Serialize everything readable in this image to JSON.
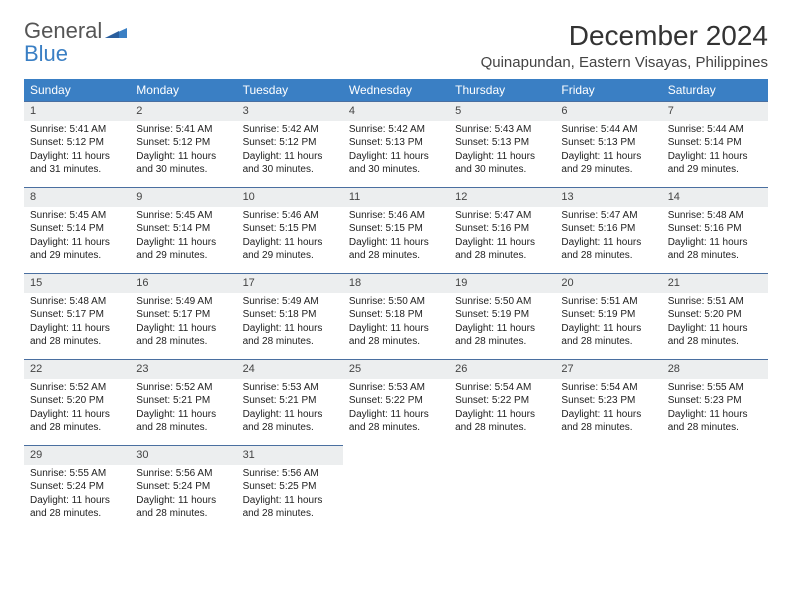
{
  "logo": {
    "general": "General",
    "blue": "Blue"
  },
  "title": "December 2024",
  "location": "Quinapundan, Eastern Visayas, Philippines",
  "colors": {
    "header_bg": "#3a7fc4",
    "header_text": "#ffffff",
    "daynum_bg": "#eceeef",
    "daynum_border": "#4a6fa0",
    "body_text": "#222222",
    "page_bg": "#ffffff"
  },
  "layout": {
    "columns": 7,
    "rows": 5,
    "start_day_index": 0
  },
  "weekdays": [
    "Sunday",
    "Monday",
    "Tuesday",
    "Wednesday",
    "Thursday",
    "Friday",
    "Saturday"
  ],
  "days": [
    {
      "n": "1",
      "sr": "5:41 AM",
      "ss": "5:12 PM",
      "dh": "11",
      "dm": "31"
    },
    {
      "n": "2",
      "sr": "5:41 AM",
      "ss": "5:12 PM",
      "dh": "11",
      "dm": "30"
    },
    {
      "n": "3",
      "sr": "5:42 AM",
      "ss": "5:12 PM",
      "dh": "11",
      "dm": "30"
    },
    {
      "n": "4",
      "sr": "5:42 AM",
      "ss": "5:13 PM",
      "dh": "11",
      "dm": "30"
    },
    {
      "n": "5",
      "sr": "5:43 AM",
      "ss": "5:13 PM",
      "dh": "11",
      "dm": "30"
    },
    {
      "n": "6",
      "sr": "5:44 AM",
      "ss": "5:13 PM",
      "dh": "11",
      "dm": "29"
    },
    {
      "n": "7",
      "sr": "5:44 AM",
      "ss": "5:14 PM",
      "dh": "11",
      "dm": "29"
    },
    {
      "n": "8",
      "sr": "5:45 AM",
      "ss": "5:14 PM",
      "dh": "11",
      "dm": "29"
    },
    {
      "n": "9",
      "sr": "5:45 AM",
      "ss": "5:14 PM",
      "dh": "11",
      "dm": "29"
    },
    {
      "n": "10",
      "sr": "5:46 AM",
      "ss": "5:15 PM",
      "dh": "11",
      "dm": "29"
    },
    {
      "n": "11",
      "sr": "5:46 AM",
      "ss": "5:15 PM",
      "dh": "11",
      "dm": "28"
    },
    {
      "n": "12",
      "sr": "5:47 AM",
      "ss": "5:16 PM",
      "dh": "11",
      "dm": "28"
    },
    {
      "n": "13",
      "sr": "5:47 AM",
      "ss": "5:16 PM",
      "dh": "11",
      "dm": "28"
    },
    {
      "n": "14",
      "sr": "5:48 AM",
      "ss": "5:16 PM",
      "dh": "11",
      "dm": "28"
    },
    {
      "n": "15",
      "sr": "5:48 AM",
      "ss": "5:17 PM",
      "dh": "11",
      "dm": "28"
    },
    {
      "n": "16",
      "sr": "5:49 AM",
      "ss": "5:17 PM",
      "dh": "11",
      "dm": "28"
    },
    {
      "n": "17",
      "sr": "5:49 AM",
      "ss": "5:18 PM",
      "dh": "11",
      "dm": "28"
    },
    {
      "n": "18",
      "sr": "5:50 AM",
      "ss": "5:18 PM",
      "dh": "11",
      "dm": "28"
    },
    {
      "n": "19",
      "sr": "5:50 AM",
      "ss": "5:19 PM",
      "dh": "11",
      "dm": "28"
    },
    {
      "n": "20",
      "sr": "5:51 AM",
      "ss": "5:19 PM",
      "dh": "11",
      "dm": "28"
    },
    {
      "n": "21",
      "sr": "5:51 AM",
      "ss": "5:20 PM",
      "dh": "11",
      "dm": "28"
    },
    {
      "n": "22",
      "sr": "5:52 AM",
      "ss": "5:20 PM",
      "dh": "11",
      "dm": "28"
    },
    {
      "n": "23",
      "sr": "5:52 AM",
      "ss": "5:21 PM",
      "dh": "11",
      "dm": "28"
    },
    {
      "n": "24",
      "sr": "5:53 AM",
      "ss": "5:21 PM",
      "dh": "11",
      "dm": "28"
    },
    {
      "n": "25",
      "sr": "5:53 AM",
      "ss": "5:22 PM",
      "dh": "11",
      "dm": "28"
    },
    {
      "n": "26",
      "sr": "5:54 AM",
      "ss": "5:22 PM",
      "dh": "11",
      "dm": "28"
    },
    {
      "n": "27",
      "sr": "5:54 AM",
      "ss": "5:23 PM",
      "dh": "11",
      "dm": "28"
    },
    {
      "n": "28",
      "sr": "5:55 AM",
      "ss": "5:23 PM",
      "dh": "11",
      "dm": "28"
    },
    {
      "n": "29",
      "sr": "5:55 AM",
      "ss": "5:24 PM",
      "dh": "11",
      "dm": "28"
    },
    {
      "n": "30",
      "sr": "5:56 AM",
      "ss": "5:24 PM",
      "dh": "11",
      "dm": "28"
    },
    {
      "n": "31",
      "sr": "5:56 AM",
      "ss": "5:25 PM",
      "dh": "11",
      "dm": "28"
    }
  ],
  "labels": {
    "sunrise_prefix": "Sunrise: ",
    "sunset_prefix": "Sunset: ",
    "daylight_prefix": "Daylight: ",
    "hours_word": " hours",
    "and_word": "and ",
    "minutes_word": " minutes."
  }
}
